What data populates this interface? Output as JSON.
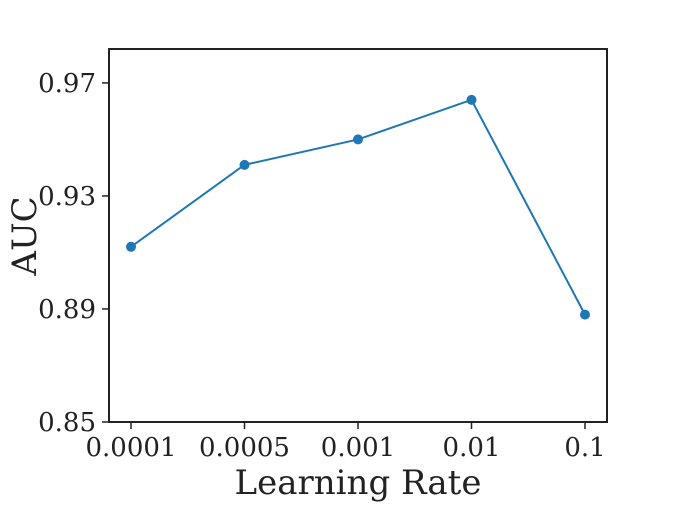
{
  "chart_data": {
    "type": "line",
    "title": "",
    "xlabel": "Learning Rate",
    "ylabel": "AUC",
    "categories": [
      "0.0001",
      "0.0005",
      "0.001",
      "0.01",
      "0.1"
    ],
    "series": [
      {
        "values": [
          0.912,
          0.941,
          0.95,
          0.964,
          0.888
        ]
      }
    ],
    "ylim": [
      0.85,
      0.982
    ],
    "yticks": [
      "0.85",
      "0.89",
      "0.93",
      "0.97"
    ],
    "grid": false,
    "legend": "none",
    "colors": {
      "line": "#1f77b4",
      "axis": "#222222"
    }
  }
}
